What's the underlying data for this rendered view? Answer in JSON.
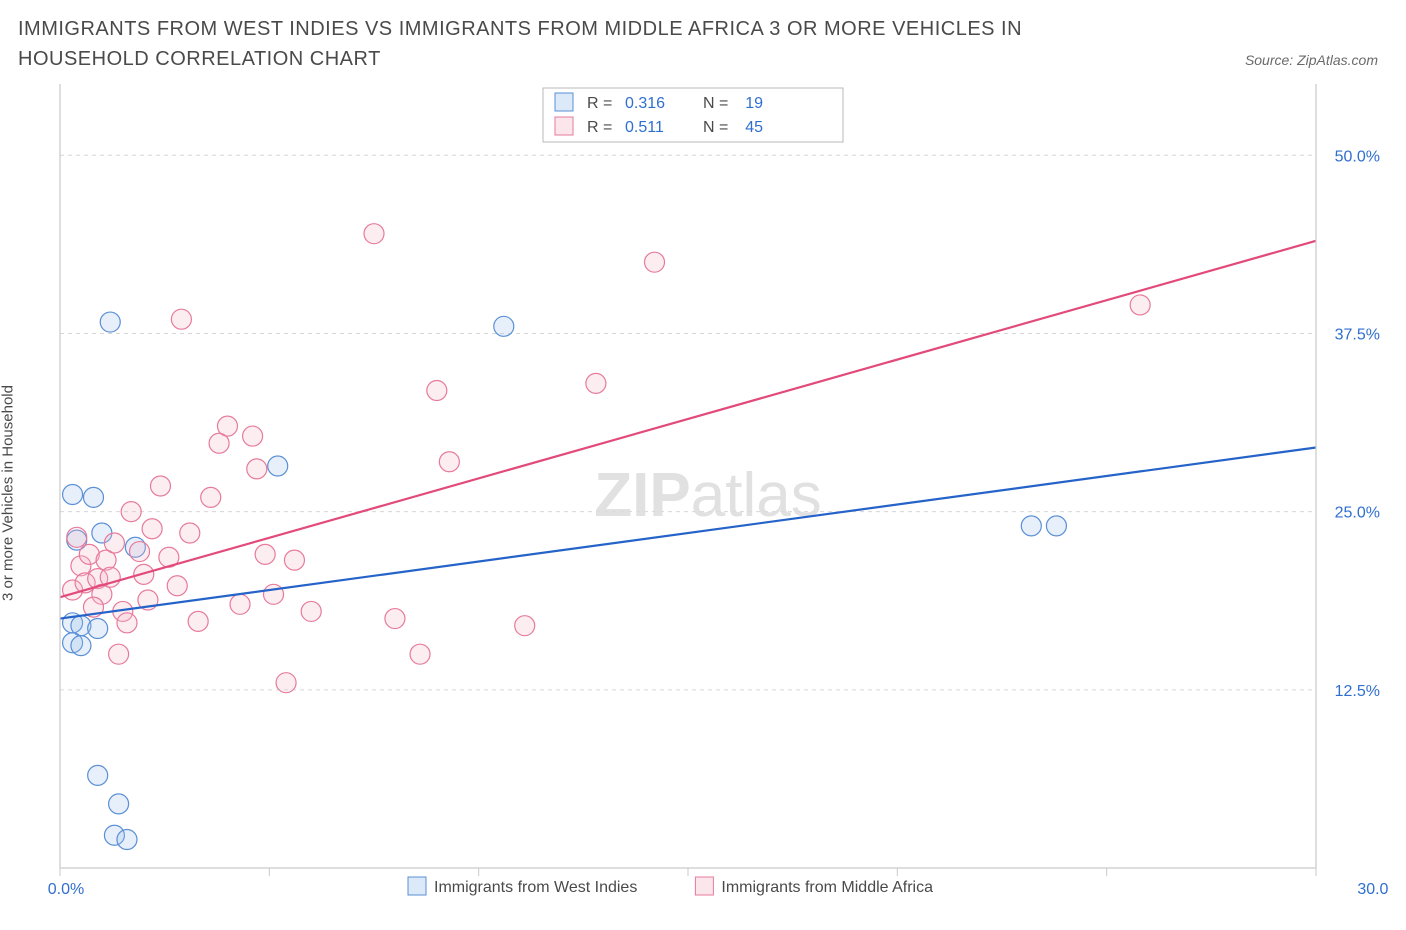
{
  "title": "IMMIGRANTS FROM WEST INDIES VS IMMIGRANTS FROM MIDDLE AFRICA 3 OR MORE VEHICLES IN HOUSEHOLD CORRELATION CHART",
  "source_label": "Source: ZipAtlas.com",
  "y_axis_label": "3 or more Vehicles in Household",
  "chart": {
    "type": "scatter",
    "xlim": [
      0,
      30
    ],
    "ylim": [
      0,
      55
    ],
    "x_ticks": [
      0,
      5,
      10,
      15,
      20,
      25,
      30
    ],
    "x_tick_labels": [
      "0.0%",
      "",
      "",
      "",
      "",
      "",
      "30.0%"
    ],
    "y_ticks": [
      12.5,
      25.0,
      37.5,
      50.0
    ],
    "y_tick_labels": [
      "12.5%",
      "25.0%",
      "37.5%",
      "50.0%"
    ],
    "background_color": "#ffffff",
    "grid_color": "#d6d6d6",
    "point_radius": 10,
    "series": [
      {
        "key": "west_indies",
        "label": "Immigrants from West Indies",
        "color_stroke": "#5a8fd6",
        "color_fill": "#9cc1ea",
        "trend_color": "#2563c9",
        "r": 0.316,
        "n": 19,
        "trend": {
          "x1": 0,
          "y1": 17.5,
          "x2": 30,
          "y2": 29.5
        },
        "points": [
          [
            0.3,
            26.2
          ],
          [
            0.8,
            26.0
          ],
          [
            1.0,
            23.5
          ],
          [
            0.3,
            17.2
          ],
          [
            0.5,
            17.0
          ],
          [
            0.9,
            16.8
          ],
          [
            0.3,
            15.8
          ],
          [
            0.5,
            15.6
          ],
          [
            1.2,
            38.3
          ],
          [
            5.2,
            28.2
          ],
          [
            10.6,
            38.0
          ],
          [
            23.2,
            24.0
          ],
          [
            23.8,
            24.0
          ],
          [
            0.9,
            6.5
          ],
          [
            1.4,
            4.5
          ],
          [
            1.3,
            2.3
          ],
          [
            1.6,
            2.0
          ],
          [
            0.4,
            23.0
          ],
          [
            1.8,
            22.5
          ]
        ]
      },
      {
        "key": "middle_africa",
        "label": "Immigrants from Middle Africa",
        "color_stroke": "#e77a9a",
        "color_fill": "#f4b8c9",
        "trend_color": "#e24a7a",
        "r": 0.511,
        "n": 45,
        "trend": {
          "x1": 0,
          "y1": 19.0,
          "x2": 30,
          "y2": 44.0
        },
        "points": [
          [
            0.3,
            19.5
          ],
          [
            0.4,
            23.2
          ],
          [
            0.5,
            21.2
          ],
          [
            0.6,
            20.0
          ],
          [
            0.7,
            22.0
          ],
          [
            0.9,
            20.3
          ],
          [
            1.0,
            19.2
          ],
          [
            1.1,
            21.6
          ],
          [
            1.2,
            20.4
          ],
          [
            1.3,
            22.8
          ],
          [
            1.5,
            18.0
          ],
          [
            1.6,
            17.2
          ],
          [
            1.7,
            25.0
          ],
          [
            1.9,
            22.2
          ],
          [
            2.0,
            20.6
          ],
          [
            2.1,
            18.8
          ],
          [
            2.2,
            23.8
          ],
          [
            2.4,
            26.8
          ],
          [
            2.6,
            21.8
          ],
          [
            2.8,
            19.8
          ],
          [
            2.9,
            38.5
          ],
          [
            3.1,
            23.5
          ],
          [
            3.3,
            17.3
          ],
          [
            3.6,
            26.0
          ],
          [
            3.8,
            29.8
          ],
          [
            4.0,
            31.0
          ],
          [
            4.3,
            18.5
          ],
          [
            4.6,
            30.3
          ],
          [
            4.7,
            28.0
          ],
          [
            4.9,
            22.0
          ],
          [
            5.1,
            19.2
          ],
          [
            5.4,
            13.0
          ],
          [
            5.6,
            21.6
          ],
          [
            6.0,
            18.0
          ],
          [
            7.5,
            44.5
          ],
          [
            8.0,
            17.5
          ],
          [
            8.6,
            15.0
          ],
          [
            9.0,
            33.5
          ],
          [
            9.3,
            28.5
          ],
          [
            11.1,
            17.0
          ],
          [
            12.8,
            34.0
          ],
          [
            14.2,
            42.5
          ],
          [
            25.8,
            39.5
          ],
          [
            1.4,
            15.0
          ],
          [
            0.8,
            18.3
          ]
        ]
      }
    ],
    "stats_legend": {
      "rows": [
        {
          "swatch_key": "west_indies",
          "r_label": "R =",
          "r_val": "0.316",
          "n_label": "N =",
          "n_val": "19"
        },
        {
          "swatch_key": "middle_africa",
          "r_label": "R =",
          "r_val": "0.511",
          "n_label": "N =",
          "n_val": "45"
        }
      ],
      "label_color": "#4a4a4a",
      "value_color": "#2f6fd0"
    },
    "bottom_legend": [
      {
        "swatch_key": "west_indies",
        "text": "Immigrants from West Indies"
      },
      {
        "swatch_key": "middle_africa",
        "text": "Immigrants from Middle Africa"
      }
    ],
    "watermark": {
      "bold": "ZIP",
      "light": "atlas"
    }
  }
}
